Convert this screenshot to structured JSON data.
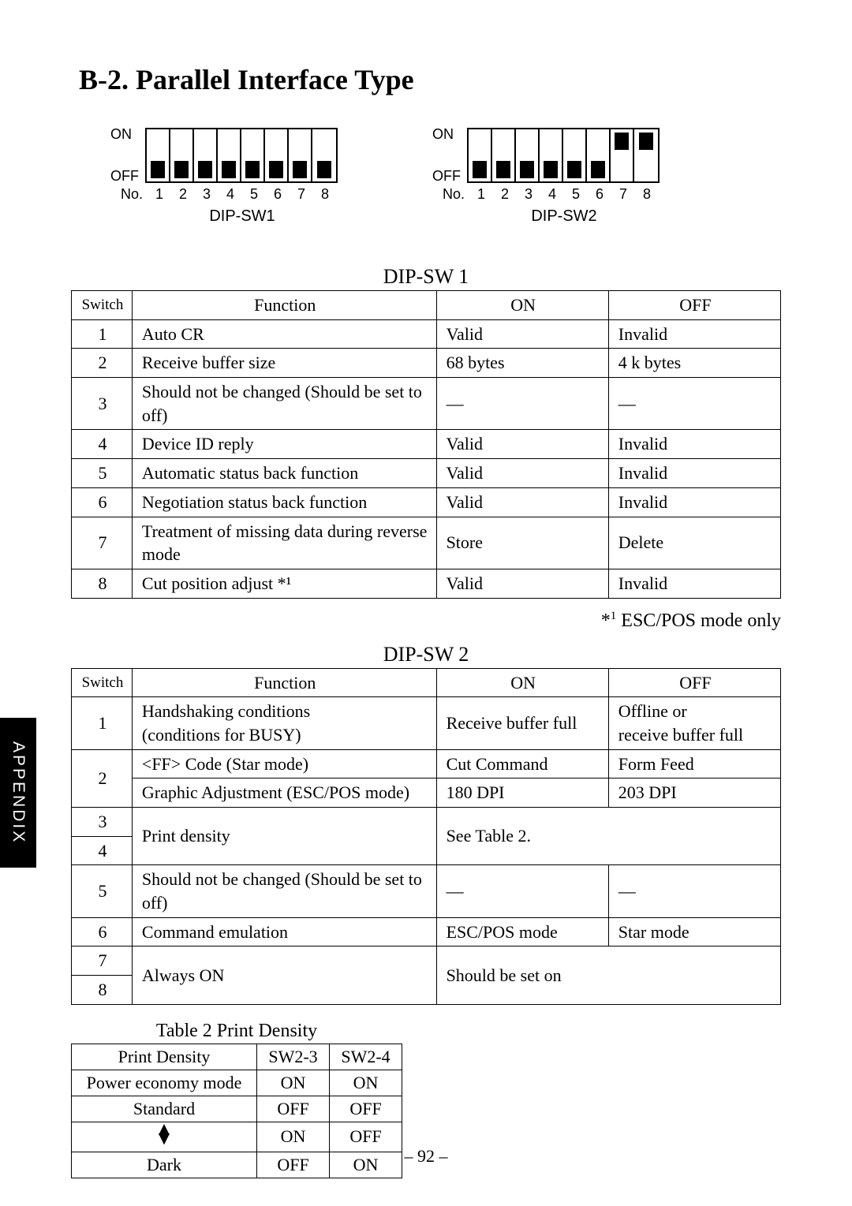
{
  "title": "B-2.  Parallel Interface Type",
  "side_tab": "APPENDIX",
  "page_number": "– 92 –",
  "footnote": {
    "mark": "*",
    "sup": "1",
    "text": " ESC/POS mode only"
  },
  "dip_diagrams": [
    {
      "on_label": "ON",
      "off_label": "OFF",
      "no_label": "No.",
      "caption": "DIP-SW1",
      "switches": [
        {
          "num": "1",
          "state": "off"
        },
        {
          "num": "2",
          "state": "off"
        },
        {
          "num": "3",
          "state": "off"
        },
        {
          "num": "4",
          "state": "off"
        },
        {
          "num": "5",
          "state": "off"
        },
        {
          "num": "6",
          "state": "off"
        },
        {
          "num": "7",
          "state": "off"
        },
        {
          "num": "8",
          "state": "off"
        }
      ]
    },
    {
      "on_label": "ON",
      "off_label": "OFF",
      "no_label": "No.",
      "caption": "DIP-SW2",
      "switches": [
        {
          "num": "1",
          "state": "off"
        },
        {
          "num": "2",
          "state": "off"
        },
        {
          "num": "3",
          "state": "off"
        },
        {
          "num": "4",
          "state": "off"
        },
        {
          "num": "5",
          "state": "off"
        },
        {
          "num": "6",
          "state": "off"
        },
        {
          "num": "7",
          "state": "on"
        },
        {
          "num": "8",
          "state": "on"
        }
      ]
    }
  ],
  "table1": {
    "title": "DIP-SW 1",
    "headers": {
      "switch": "Switch",
      "function": "Function",
      "on": "ON",
      "off": "OFF"
    },
    "rows": [
      {
        "sw": "1",
        "fn": "Auto CR",
        "on": "Valid",
        "off": "Invalid"
      },
      {
        "sw": "2",
        "fn": "Receive buffer size",
        "on": "68 bytes",
        "off": "4 k bytes"
      },
      {
        "sw": "3",
        "fn": "Should not be changed (Should be set to off)",
        "on": "—",
        "off": "—"
      },
      {
        "sw": "4",
        "fn": "Device ID reply",
        "on": "Valid",
        "off": "Invalid"
      },
      {
        "sw": "5",
        "fn": "Automatic status back function",
        "on": "Valid",
        "off": "Invalid"
      },
      {
        "sw": "6",
        "fn": "Negotiation status back function",
        "on": "Valid",
        "off": "Invalid"
      },
      {
        "sw": "7",
        "fn": "Treatment of missing data during reverse mode",
        "on": "Store",
        "off": "Delete"
      },
      {
        "sw": "8",
        "fn": "Cut position adjust *¹",
        "on": "Valid",
        "off": "Invalid"
      }
    ]
  },
  "table2": {
    "title": "DIP-SW 2",
    "headers": {
      "switch": "Switch",
      "function": "Function",
      "on": "ON",
      "off": "OFF"
    },
    "row1": {
      "sw": "1",
      "fn": "Handshaking conditions\n(conditions for BUSY)",
      "on": "Receive buffer full",
      "off": "Offline or\nreceive buffer full"
    },
    "row2a": {
      "sw": "2",
      "fn": "<FF> Code (Star mode)",
      "on": "Cut Command",
      "off": "Form Feed"
    },
    "row2b": {
      "fn": "Graphic Adjustment (ESC/POS mode)",
      "on": "180 DPI",
      "off": "203 DPI"
    },
    "row34": {
      "sw3": "3",
      "sw4": "4",
      "fn": "Print density",
      "merged": "See Table 2."
    },
    "row5": {
      "sw": "5",
      "fn": "Should not be changed (Should be set to off)",
      "on": "—",
      "off": "—"
    },
    "row6": {
      "sw": "6",
      "fn": "Command emulation",
      "on": "ESC/POS mode",
      "off": "Star mode"
    },
    "row78": {
      "sw7": "7",
      "sw8": "8",
      "fn": "Always ON",
      "merged": "Should be set on"
    }
  },
  "table3": {
    "title": "Table 2 Print Density",
    "headers": {
      "pd": "Print Density",
      "c2": "SW2-3",
      "c3": "SW2-4"
    },
    "rows": [
      {
        "pd": "Power economy mode",
        "c2": "ON",
        "c3": "ON"
      },
      {
        "pd": "Standard",
        "c2": "OFF",
        "c3": "OFF"
      },
      {
        "pd": "__updown__",
        "c2": "ON",
        "c3": "OFF"
      },
      {
        "pd": "Dark",
        "c2": "OFF",
        "c3": "ON"
      }
    ]
  },
  "colors": {
    "text": "#000000",
    "background": "#ffffff",
    "tab_bg": "#000000",
    "tab_fg": "#ffffff"
  }
}
